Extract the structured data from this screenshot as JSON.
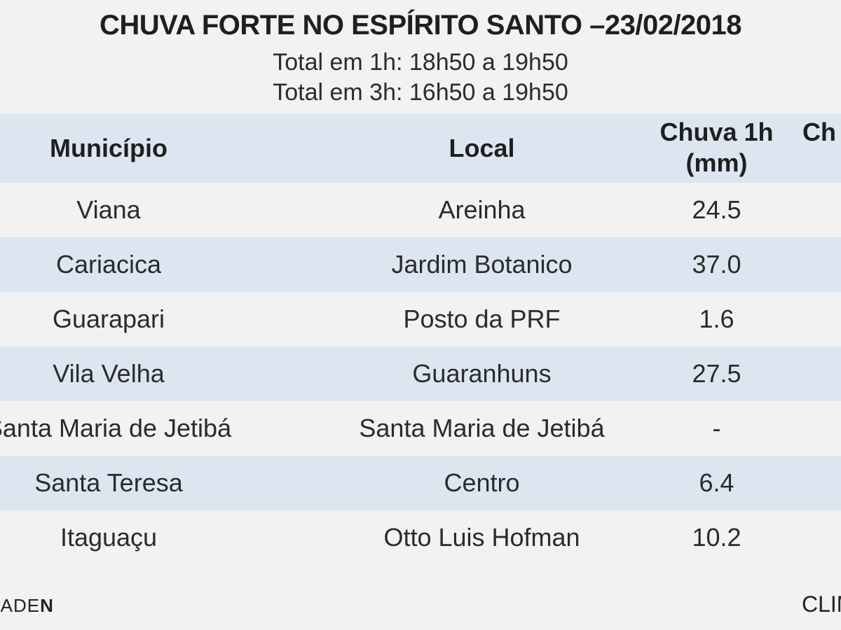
{
  "title": "CHUVA FORTE NO ESPÍRITO SANTO –23/02/2018",
  "subtitle_1h": "Total em 1h: 18h50 a 19h50",
  "subtitle_3h": "Total em 3h: 16h50 a 19h50",
  "table": {
    "headers": {
      "municipio": "Município",
      "local": "Local",
      "chuva_1h": "Chuva 1h (mm)",
      "chuva_3h_partial": "Ch"
    },
    "rows": [
      {
        "municipio": "Viana",
        "local": "Areinha",
        "chuva_1h": "24.5"
      },
      {
        "municipio": "Cariacica",
        "local": "Jardim Botanico",
        "chuva_1h": "37.0"
      },
      {
        "municipio": "Guarapari",
        "local": "Posto da PRF",
        "chuva_1h": "1.6"
      },
      {
        "municipio": "Vila Velha",
        "local": "Guaranhuns",
        "chuva_1h": "27.5"
      },
      {
        "municipio": "Santa Maria de Jetibá",
        "local": "Santa Maria de Jetibá",
        "chuva_1h": "-"
      },
      {
        "municipio": "Santa Teresa",
        "local": "Centro",
        "chuva_1h": "6.4"
      },
      {
        "municipio": "Itaguaçu",
        "local": "Otto Luis Hofman",
        "chuva_1h": "10.2"
      }
    ]
  },
  "footer": {
    "left_prefix": "MADE",
    "left_bold": "N",
    "right": "CLIM"
  },
  "colors": {
    "header_band": "#dce6f1",
    "stripe": "#dce6f1",
    "background": "#f2f2f2"
  }
}
